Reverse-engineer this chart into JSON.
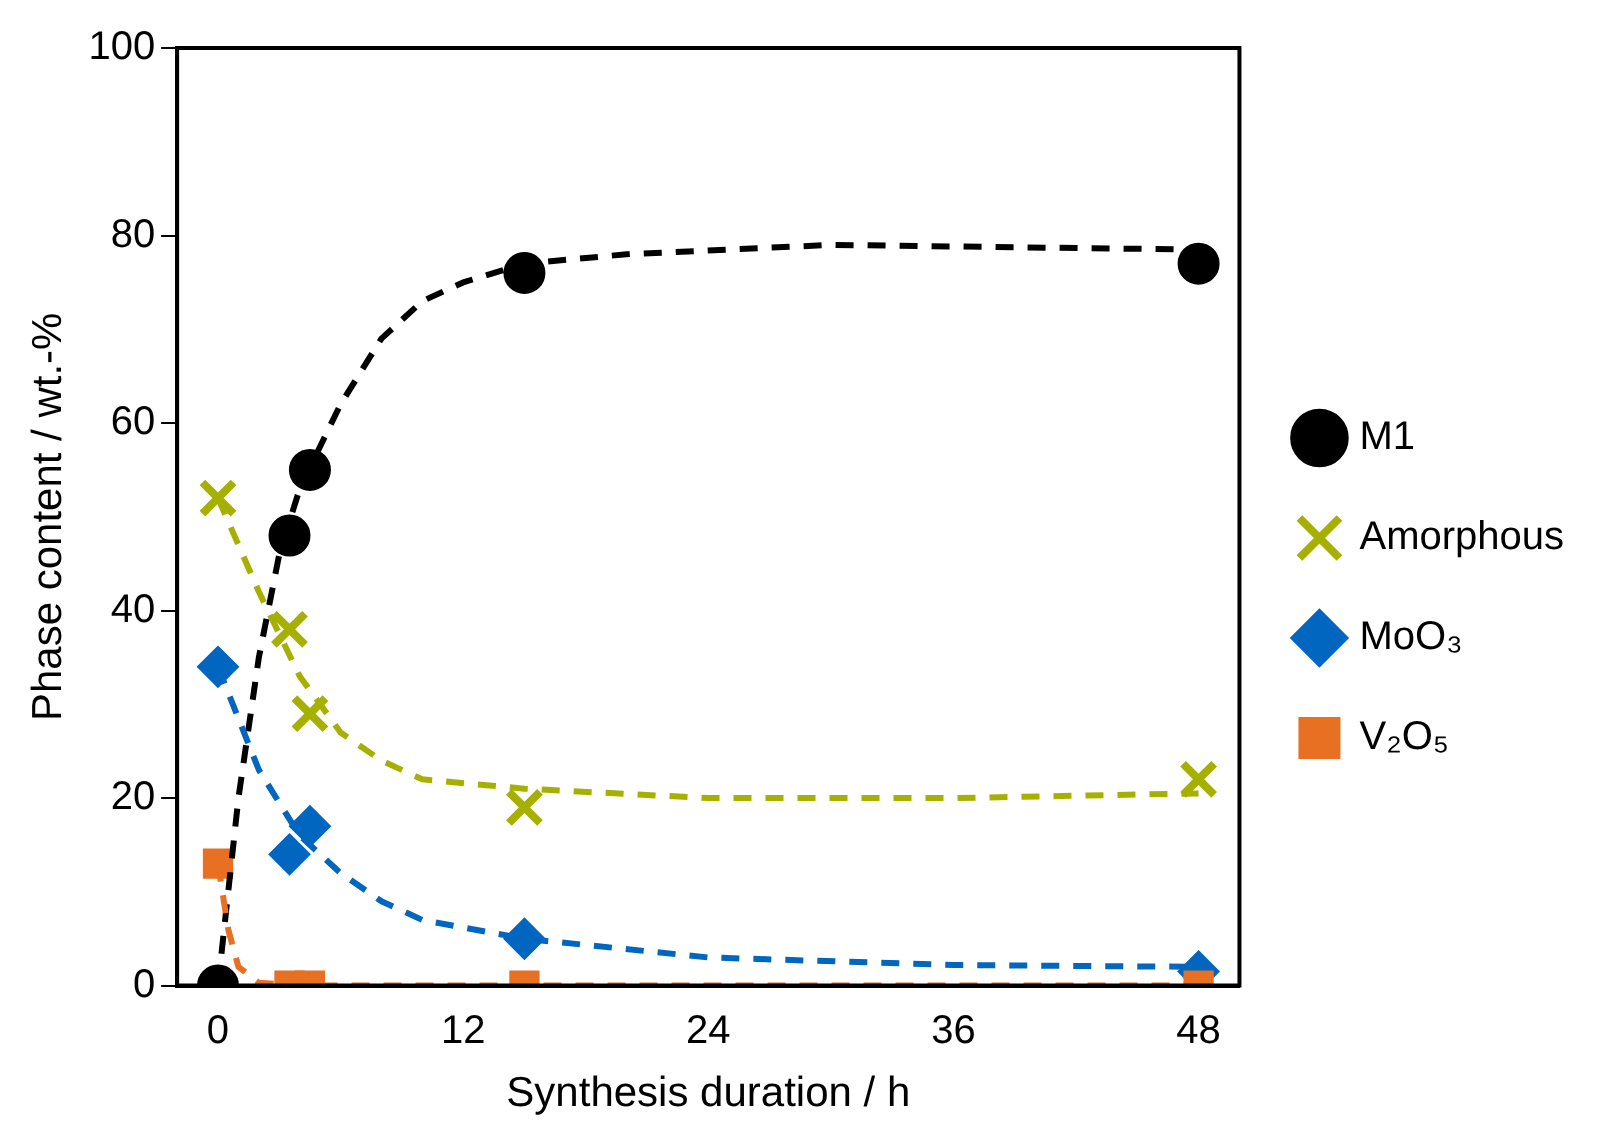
{
  "chart_data": {
    "type": "scatter",
    "xlabel": "Synthesis duration / h",
    "ylabel": "Phase content / wt.-%",
    "xlim": [
      -2,
      50
    ],
    "xticks": [
      0,
      12,
      24,
      36,
      48
    ],
    "ylim": [
      0,
      100
    ],
    "yticks": [
      0,
      20,
      40,
      60,
      80,
      100
    ],
    "grid": false,
    "legend": "right",
    "series": [
      {
        "name": "M1",
        "type": "scatter",
        "marker": "circle",
        "color": "#000000",
        "x": [
          0,
          3.5,
          4.5,
          15,
          48
        ],
        "values": [
          0,
          48,
          55,
          76,
          77
        ]
      },
      {
        "name": "Amorphous",
        "type": "scatter",
        "marker": "cross",
        "color": "#a5b000",
        "x": [
          0,
          3.5,
          4.5,
          15,
          48
        ],
        "values": [
          52,
          38,
          29,
          19,
          22
        ]
      },
      {
        "name": "MoO₃",
        "type": "scatter",
        "marker": "diamond",
        "color": "#0066c0",
        "x": [
          0,
          3.5,
          4.5,
          15,
          48
        ],
        "values": [
          34,
          14,
          17,
          5,
          1.5
        ]
      },
      {
        "name": "V₂O₅",
        "type": "scatter",
        "marker": "square",
        "color": "#e87022",
        "x": [
          0,
          3.5,
          4.5,
          15,
          48
        ],
        "values": [
          13,
          0,
          0,
          0,
          0
        ]
      },
      {
        "type": "line",
        "marker": "none",
        "line_style": "dashed",
        "color": "#000000",
        "x": [
          0,
          1,
          2,
          3,
          4,
          6,
          8,
          10,
          12,
          15,
          20,
          30,
          48
        ],
        "values": [
          0,
          20,
          35,
          46,
          53,
          62,
          69,
          73,
          75,
          77,
          78,
          79,
          78.5
        ]
      },
      {
        "type": "line",
        "marker": "none",
        "line_style": "dashed",
        "color": "#a5b000",
        "x": [
          0,
          2,
          4,
          6,
          8,
          10,
          15,
          24,
          36,
          48
        ],
        "values": [
          52,
          42,
          33,
          27,
          24,
          22,
          21,
          20,
          20,
          20.5
        ]
      },
      {
        "type": "line",
        "marker": "none",
        "line_style": "dashed",
        "color": "#0066c0",
        "x": [
          0,
          2,
          4,
          6,
          8,
          10,
          15,
          24,
          36,
          48
        ],
        "values": [
          34,
          23,
          16,
          12,
          9,
          7,
          5,
          3,
          2.2,
          2
        ]
      },
      {
        "type": "line",
        "marker": "none",
        "line_style": "dashed",
        "color": "#e87022",
        "x": [
          0,
          0.5,
          1,
          2,
          4,
          48
        ],
        "values": [
          13,
          6,
          2,
          0.3,
          0,
          0
        ]
      }
    ]
  }
}
